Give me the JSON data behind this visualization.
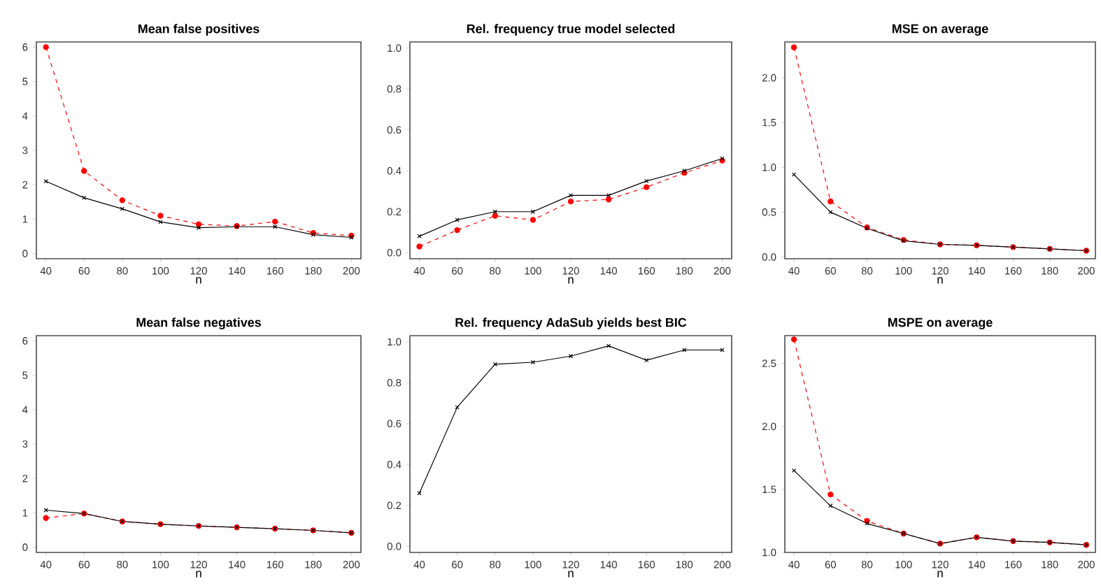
{
  "chart_data": [
    {
      "type": "line",
      "title": "Mean false positives",
      "xlabel": "n",
      "x": [
        40,
        60,
        80,
        100,
        120,
        140,
        160,
        180,
        200
      ],
      "xlim": [
        35,
        205
      ],
      "xticks": [
        40,
        60,
        80,
        100,
        120,
        140,
        160,
        180,
        200
      ],
      "ylim": [
        -0.15,
        6.15
      ],
      "yticks": [
        0,
        1,
        2,
        3,
        4,
        5,
        6
      ],
      "series": [
        {
          "color": "#000000",
          "marker": "cross",
          "line_style": "solid",
          "values": [
            2.1,
            1.62,
            1.3,
            0.92,
            0.75,
            0.78,
            0.78,
            0.55,
            0.47
          ]
        },
        {
          "color": "#ff0000",
          "marker": "circle",
          "line_style": "dashed",
          "values": [
            6.0,
            2.4,
            1.55,
            1.1,
            0.85,
            0.8,
            0.93,
            0.6,
            0.52
          ]
        }
      ]
    },
    {
      "type": "line",
      "title": "Rel. frequency true model selected",
      "xlabel": "n",
      "x": [
        40,
        60,
        80,
        100,
        120,
        140,
        160,
        180,
        200
      ],
      "xlim": [
        35,
        205
      ],
      "xticks": [
        40,
        60,
        80,
        100,
        120,
        140,
        160,
        180,
        200
      ],
      "ylim": [
        -0.03,
        1.03
      ],
      "yticks": [
        {
          "value": 0,
          "label": "0.0"
        },
        0.2,
        0.4,
        0.6,
        0.8,
        {
          "value": 1,
          "label": "1.0"
        }
      ],
      "series": [
        {
          "color": "#000000",
          "marker": "cross",
          "line_style": "solid",
          "values": [
            0.08,
            0.16,
            0.2,
            0.2,
            0.28,
            0.28,
            0.35,
            0.4,
            0.46
          ]
        },
        {
          "color": "#ff0000",
          "marker": "circle",
          "line_style": "dashed",
          "values": [
            0.03,
            0.11,
            0.18,
            0.16,
            0.25,
            0.26,
            0.32,
            0.39,
            0.45
          ]
        }
      ]
    },
    {
      "type": "line",
      "title": "MSE on average",
      "xlabel": "n",
      "x": [
        40,
        60,
        80,
        100,
        120,
        140,
        160,
        180,
        200
      ],
      "xlim": [
        35,
        205
      ],
      "xticks": [
        40,
        60,
        80,
        100,
        120,
        140,
        160,
        180,
        200
      ],
      "ylim": [
        -0.02,
        2.4
      ],
      "yticks": [
        {
          "value": 0,
          "label": "0.0"
        },
        0.5,
        {
          "value": 1,
          "label": "1.0"
        },
        1.5,
        {
          "value": 2,
          "label": "2.0"
        }
      ],
      "series": [
        {
          "color": "#000000",
          "marker": "cross",
          "line_style": "solid",
          "values": [
            0.92,
            0.5,
            0.32,
            0.18,
            0.14,
            0.13,
            0.11,
            0.09,
            0.07
          ]
        },
        {
          "color": "#ff0000",
          "marker": "circle",
          "line_style": "dashed",
          "values": [
            2.34,
            0.62,
            0.33,
            0.19,
            0.14,
            0.13,
            0.11,
            0.09,
            0.07
          ]
        }
      ]
    },
    {
      "type": "line",
      "title": "Mean false negatives",
      "xlabel": "n",
      "x": [
        40,
        60,
        80,
        100,
        120,
        140,
        160,
        180,
        200
      ],
      "xlim": [
        35,
        205
      ],
      "xticks": [
        40,
        60,
        80,
        100,
        120,
        140,
        160,
        180,
        200
      ],
      "ylim": [
        -0.15,
        6.15
      ],
      "yticks": [
        0,
        1,
        2,
        3,
        4,
        5,
        6
      ],
      "series": [
        {
          "color": "#000000",
          "marker": "cross",
          "line_style": "solid",
          "values": [
            1.08,
            0.98,
            0.75,
            0.67,
            0.62,
            0.58,
            0.54,
            0.49,
            0.42
          ]
        },
        {
          "color": "#ff0000",
          "marker": "circle",
          "line_style": "dashed",
          "values": [
            0.85,
            0.98,
            0.75,
            0.67,
            0.62,
            0.58,
            0.54,
            0.49,
            0.42
          ]
        }
      ]
    },
    {
      "type": "line",
      "title": "Rel. frequency AdaSub yields best BIC",
      "xlabel": "n",
      "x": [
        40,
        60,
        80,
        100,
        120,
        140,
        160,
        180,
        200
      ],
      "xlim": [
        35,
        205
      ],
      "xticks": [
        40,
        60,
        80,
        100,
        120,
        140,
        160,
        180,
        200
      ],
      "ylim": [
        -0.03,
        1.03
      ],
      "yticks": [
        {
          "value": 0,
          "label": "0.0"
        },
        0.2,
        0.4,
        0.6,
        0.8,
        {
          "value": 1,
          "label": "1.0"
        }
      ],
      "series": [
        {
          "color": "#000000",
          "marker": "cross",
          "line_style": "solid",
          "values": [
            0.26,
            0.68,
            0.89,
            0.9,
            0.93,
            0.98,
            0.91,
            0.96,
            0.96
          ]
        }
      ]
    },
    {
      "type": "line",
      "title": "MSPE on average",
      "xlabel": "n",
      "x": [
        40,
        60,
        80,
        100,
        120,
        140,
        160,
        180,
        200
      ],
      "xlim": [
        35,
        205
      ],
      "xticks": [
        40,
        60,
        80,
        100,
        120,
        140,
        160,
        180,
        200
      ],
      "ylim": [
        1.0,
        2.72
      ],
      "yticks": [
        {
          "value": 1,
          "label": "1.0"
        },
        1.5,
        {
          "value": 2,
          "label": "2.0"
        },
        2.5
      ],
      "series": [
        {
          "color": "#000000",
          "marker": "cross",
          "line_style": "solid",
          "values": [
            1.65,
            1.37,
            1.23,
            1.15,
            1.07,
            1.12,
            1.09,
            1.08,
            1.06
          ]
        },
        {
          "color": "#ff0000",
          "marker": "circle",
          "line_style": "dashed",
          "values": [
            2.69,
            1.46,
            1.25,
            1.15,
            1.07,
            1.12,
            1.09,
            1.08,
            1.06
          ]
        }
      ]
    }
  ]
}
